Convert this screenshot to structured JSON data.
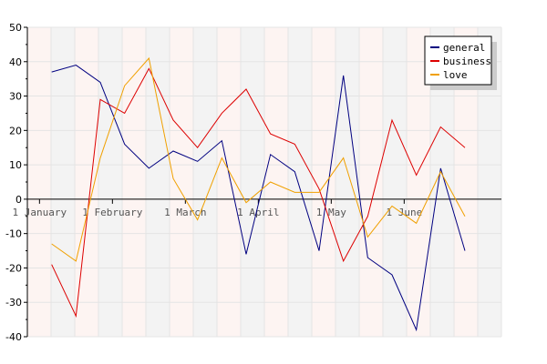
{
  "chart_data": {
    "type": "line",
    "ylim": [
      -40,
      50
    ],
    "yticks": [
      -40,
      -30,
      -20,
      -10,
      0,
      10,
      20,
      30,
      40,
      50
    ],
    "xlim": [
      -1,
      18.5
    ],
    "x_tick_labels": [
      {
        "label": "1 January",
        "x": -0.5
      },
      {
        "label": "1 February",
        "x": 2.5
      },
      {
        "label": "1 March",
        "x": 5.5
      },
      {
        "label": "1 April",
        "x": 8.5
      },
      {
        "label": "1 May",
        "x": 11.5
      },
      {
        "label": "1 June",
        "x": 14.5
      }
    ],
    "band_count": 20,
    "grid": true,
    "legend_position": "top-right",
    "series": [
      {
        "name": "general",
        "color": "#000080",
        "values": [
          37,
          39,
          34,
          16,
          9,
          14,
          11,
          17,
          -16,
          13,
          8,
          -15,
          36,
          -17,
          -22,
          -38,
          9,
          -15
        ]
      },
      {
        "name": "business",
        "color": "#dd0000",
        "values": [
          -19,
          -34,
          29,
          25,
          38,
          23,
          15,
          25,
          32,
          19,
          16,
          3,
          -18,
          -5,
          23,
          7,
          21,
          15
        ]
      },
      {
        "name": "love",
        "color": "#f0a000",
        "values": [
          -13,
          -18,
          12,
          33,
          41,
          6,
          -6,
          12,
          -1,
          5,
          2,
          2,
          12,
          -11,
          -2,
          -7,
          8,
          -5
        ]
      }
    ]
  }
}
